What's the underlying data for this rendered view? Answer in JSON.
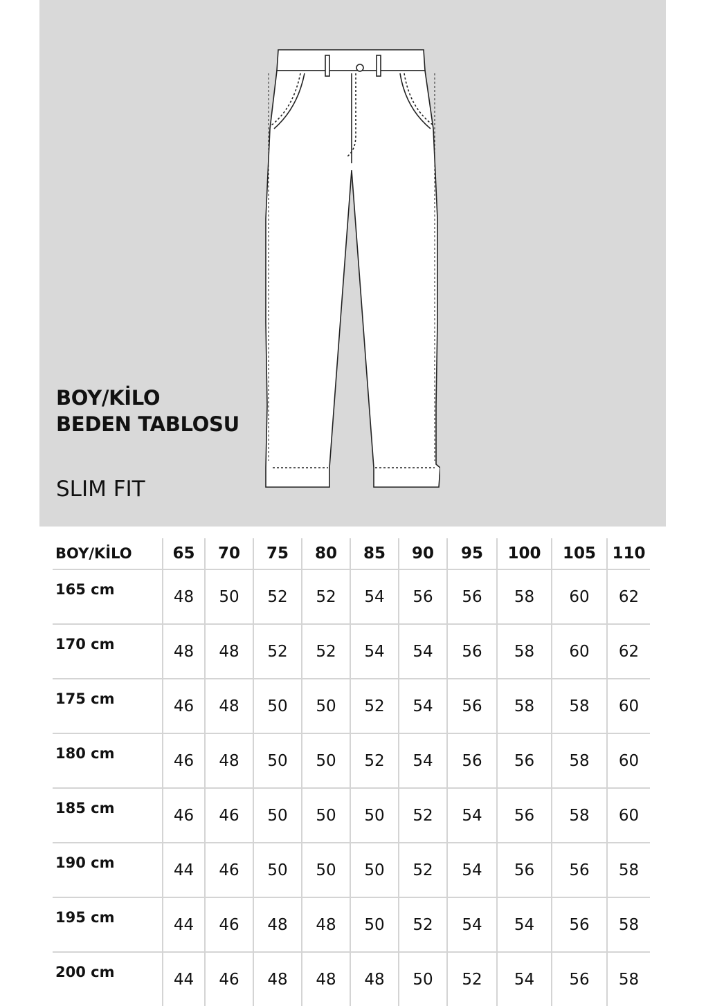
{
  "title_lines": [
    "BOY/KİLO",
    "BEDEN TABLOSU"
  ],
  "subtitle": "SLIM FIT",
  "illustration": "pants-technical-drawing",
  "panel_color": "#d9d9d9",
  "table": {
    "corner_header": "BOY/KİLO",
    "weights": [
      "65",
      "70",
      "75",
      "80",
      "85",
      "90",
      "95",
      "100",
      "105",
      "110"
    ],
    "rows": [
      {
        "height": "165 cm",
        "sizes": [
          "48",
          "50",
          "52",
          "52",
          "54",
          "56",
          "56",
          "58",
          "60",
          "62"
        ]
      },
      {
        "height": "170 cm",
        "sizes": [
          "48",
          "48",
          "52",
          "52",
          "54",
          "54",
          "56",
          "58",
          "60",
          "62"
        ]
      },
      {
        "height": "175 cm",
        "sizes": [
          "46",
          "48",
          "50",
          "50",
          "52",
          "54",
          "56",
          "58",
          "58",
          "60"
        ]
      },
      {
        "height": "180 cm",
        "sizes": [
          "46",
          "48",
          "50",
          "50",
          "52",
          "54",
          "56",
          "56",
          "58",
          "60"
        ]
      },
      {
        "height": "185 cm",
        "sizes": [
          "46",
          "46",
          "50",
          "50",
          "50",
          "52",
          "54",
          "56",
          "58",
          "60"
        ]
      },
      {
        "height": "190 cm",
        "sizes": [
          "44",
          "46",
          "50",
          "50",
          "50",
          "52",
          "54",
          "56",
          "56",
          "58"
        ]
      },
      {
        "height": "195 cm",
        "sizes": [
          "44",
          "46",
          "48",
          "48",
          "50",
          "52",
          "54",
          "54",
          "56",
          "58"
        ]
      },
      {
        "height": "200 cm",
        "sizes": [
          "44",
          "46",
          "48",
          "48",
          "48",
          "50",
          "52",
          "54",
          "56",
          "58"
        ]
      }
    ]
  }
}
